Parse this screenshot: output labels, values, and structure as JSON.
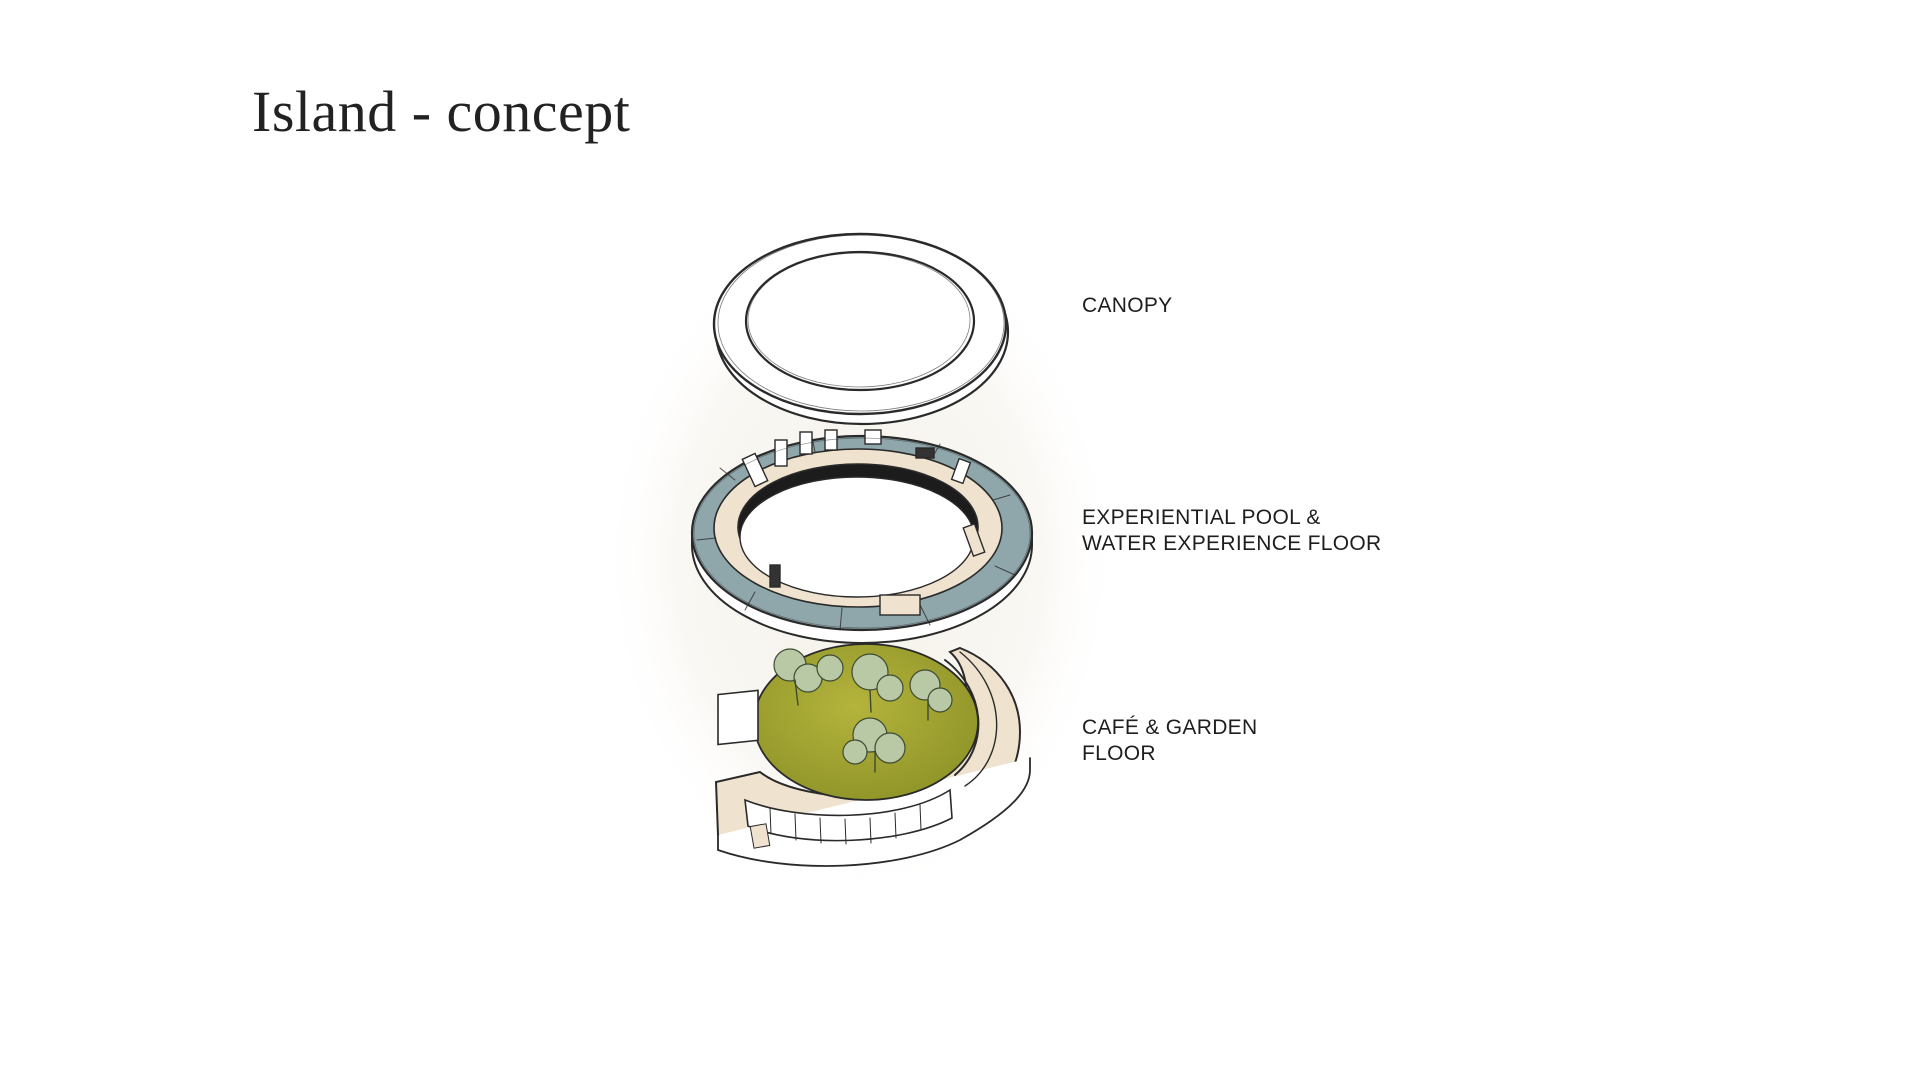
{
  "slide": {
    "title": "Island - concept"
  },
  "diagram": {
    "layers": [
      {
        "id": "canopy",
        "lines": [
          "CANOPY"
        ]
      },
      {
        "id": "pool",
        "lines": [
          "EXPERIENTIAL POOL &",
          "WATER EXPERIENCE FLOOR"
        ]
      },
      {
        "id": "cafe",
        "lines": [
          "CAFÉ & GARDEN",
          "FLOOR"
        ]
      }
    ],
    "colors": {
      "ink": "#2a2a2a",
      "pool_blue": "#8fa7ab",
      "deck_sand": "#efe3cf",
      "garden_green": "#a3a531",
      "tree_green": "#b9c9a6",
      "glow": "#f4f1ea"
    }
  }
}
